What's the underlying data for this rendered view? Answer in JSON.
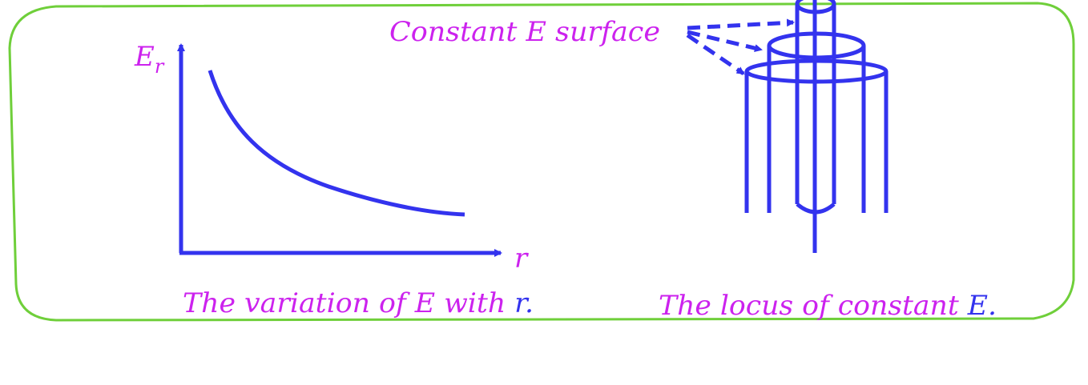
{
  "colors": {
    "frame": "#6fcf3a",
    "ink": "#3333ee",
    "label": "#cc22ee",
    "background": "#ffffff"
  },
  "graph": {
    "y_axis_label_main": "E",
    "y_axis_label_sub": "r",
    "x_axis_label": "r",
    "caption_main": "The variation of E with ",
    "caption_var": "r."
  },
  "locus": {
    "callout_label": "Constant E surface",
    "caption_main": "The locus of constant ",
    "caption_var": "E."
  }
}
